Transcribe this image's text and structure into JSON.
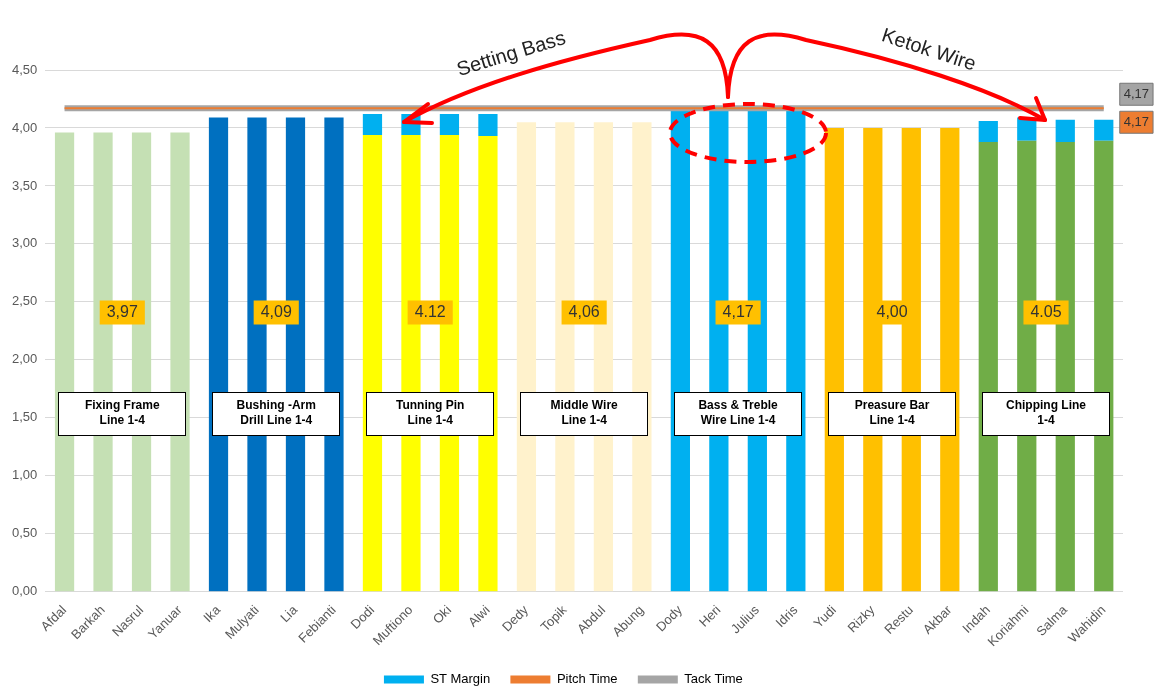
{
  "chart_data": {
    "type": "bar",
    "stacked": true,
    "categories": [
      "Afdal",
      "Barkah",
      "Nasrul",
      "Yanuar",
      "Ika",
      "Mulyati",
      "Lia",
      "Febianti",
      "Dodi",
      "Muftiono",
      "Oki",
      "Alwi",
      "Dedy",
      "Topik",
      "Abdul",
      "Abung",
      "Dody",
      "Heri",
      "Julius",
      "Idris",
      "Yudi",
      "Rizky",
      "Restu",
      "Akbar",
      "Indah",
      "Koriahmi",
      "Salma",
      "Wahidin"
    ],
    "series": [
      {
        "color": "#4472c4",
        "colors": [
          "#c5e0b4",
          "#c5e0b4",
          "#c5e0b4",
          "#c5e0b4",
          "#0070c0",
          "#0070c0",
          "#0070c0",
          "#0070c0",
          "#ffff00",
          "#ffff00",
          "#ffff00",
          "#ffff00",
          "#fff2cc",
          "#fff2cc",
          "#fff2cc",
          "#fff2cc",
          "#00b0f0",
          "#00b0f0",
          "#00b0f0",
          "#00b0f0",
          "#ffc000",
          "#ffc000",
          "#ffc000",
          "#ffc000",
          "#70ad47",
          "#70ad47",
          "#70ad47",
          "#70ad47"
        ],
        "values": [
          3.96,
          3.96,
          3.96,
          3.96,
          4.09,
          4.09,
          4.09,
          4.09,
          3.94,
          3.94,
          3.94,
          3.93,
          4.05,
          4.05,
          4.05,
          4.05,
          4.15,
          4.15,
          4.15,
          4.15,
          4.0,
          4.0,
          4.0,
          4.0,
          3.88,
          3.89,
          3.88,
          3.89
        ]
      },
      {
        "name": "ST Margin",
        "color": "#00b0f0",
        "values": [
          null,
          null,
          null,
          null,
          null,
          null,
          null,
          null,
          0.18,
          0.18,
          0.18,
          0.19,
          null,
          null,
          null,
          null,
          null,
          null,
          null,
          null,
          null,
          null,
          null,
          null,
          0.18,
          0.2,
          0.19,
          0.18
        ]
      },
      {
        "name": "Pitch Time",
        "type": "line",
        "color": "#ed7d31",
        "values": [
          4.17,
          4.17,
          4.17,
          4.17,
          4.17,
          4.17,
          4.17,
          4.17,
          4.17,
          4.17,
          4.17,
          4.17,
          4.17,
          4.17,
          4.17,
          4.17,
          4.17,
          4.17,
          4.17,
          4.17,
          4.17,
          4.17,
          4.17,
          4.17,
          4.17,
          4.17,
          4.17,
          4.17
        ],
        "value_labels": [
          null,
          null,
          null,
          null,
          null,
          null,
          null,
          null,
          null,
          null,
          null,
          null,
          null,
          null,
          null,
          null,
          null,
          null,
          null,
          null,
          null,
          null,
          null,
          null,
          null,
          null,
          null,
          "4,17"
        ]
      },
      {
        "name": "Tack Time",
        "type": "line",
        "color": "#a5a5a5",
        "values": [
          4.17,
          4.17,
          4.17,
          4.17,
          4.17,
          4.17,
          4.17,
          4.17,
          4.17,
          4.17,
          4.17,
          4.17,
          4.17,
          4.17,
          4.17,
          4.17,
          4.17,
          4.17,
          4.17,
          4.17,
          4.17,
          4.17,
          4.17,
          4.17,
          4.17,
          4.17,
          4.17,
          4.17
        ],
        "value_labels": [
          null,
          null,
          null,
          null,
          null,
          null,
          null,
          null,
          null,
          null,
          null,
          null,
          null,
          null,
          null,
          null,
          null,
          null,
          null,
          null,
          null,
          null,
          null,
          null,
          null,
          null,
          null,
          "4,17"
        ]
      }
    ],
    "ylim": [
      0,
      4.5
    ],
    "yticks": [
      {
        "value": 0,
        "label": "0,00"
      },
      {
        "value": 0.5,
        "label": "0,50"
      },
      {
        "value": 1,
        "label": "1,00"
      },
      {
        "value": 1.5,
        "label": "1,50"
      },
      {
        "value": 2,
        "label": "2,00"
      },
      {
        "value": 2.5,
        "label": "2,50"
      },
      {
        "value": 3,
        "label": "3,00"
      },
      {
        "value": 3.5,
        "label": "3,50"
      },
      {
        "value": 4,
        "label": "4,00"
      },
      {
        "value": 4.5,
        "label": "4,50"
      }
    ],
    "grid": "y",
    "legend": "bottom",
    "marker": "none",
    "annotations": [
      "Fixing Frame Line 1-4",
      "Bushing -Arm Drill Line 1-4",
      "Tunning Pin Line 1-4",
      "Middle Wire Line 1-4",
      "Bass & Treble Wire Line 1-4",
      "Preasure Bar Line 1-4",
      "Chipping Line 1-4",
      "3,97",
      "4,09",
      "4.12",
      "4,06",
      "4,17",
      "4,00",
      "4.05",
      "Setting Bass",
      "Ketok Wire"
    ]
  }
}
